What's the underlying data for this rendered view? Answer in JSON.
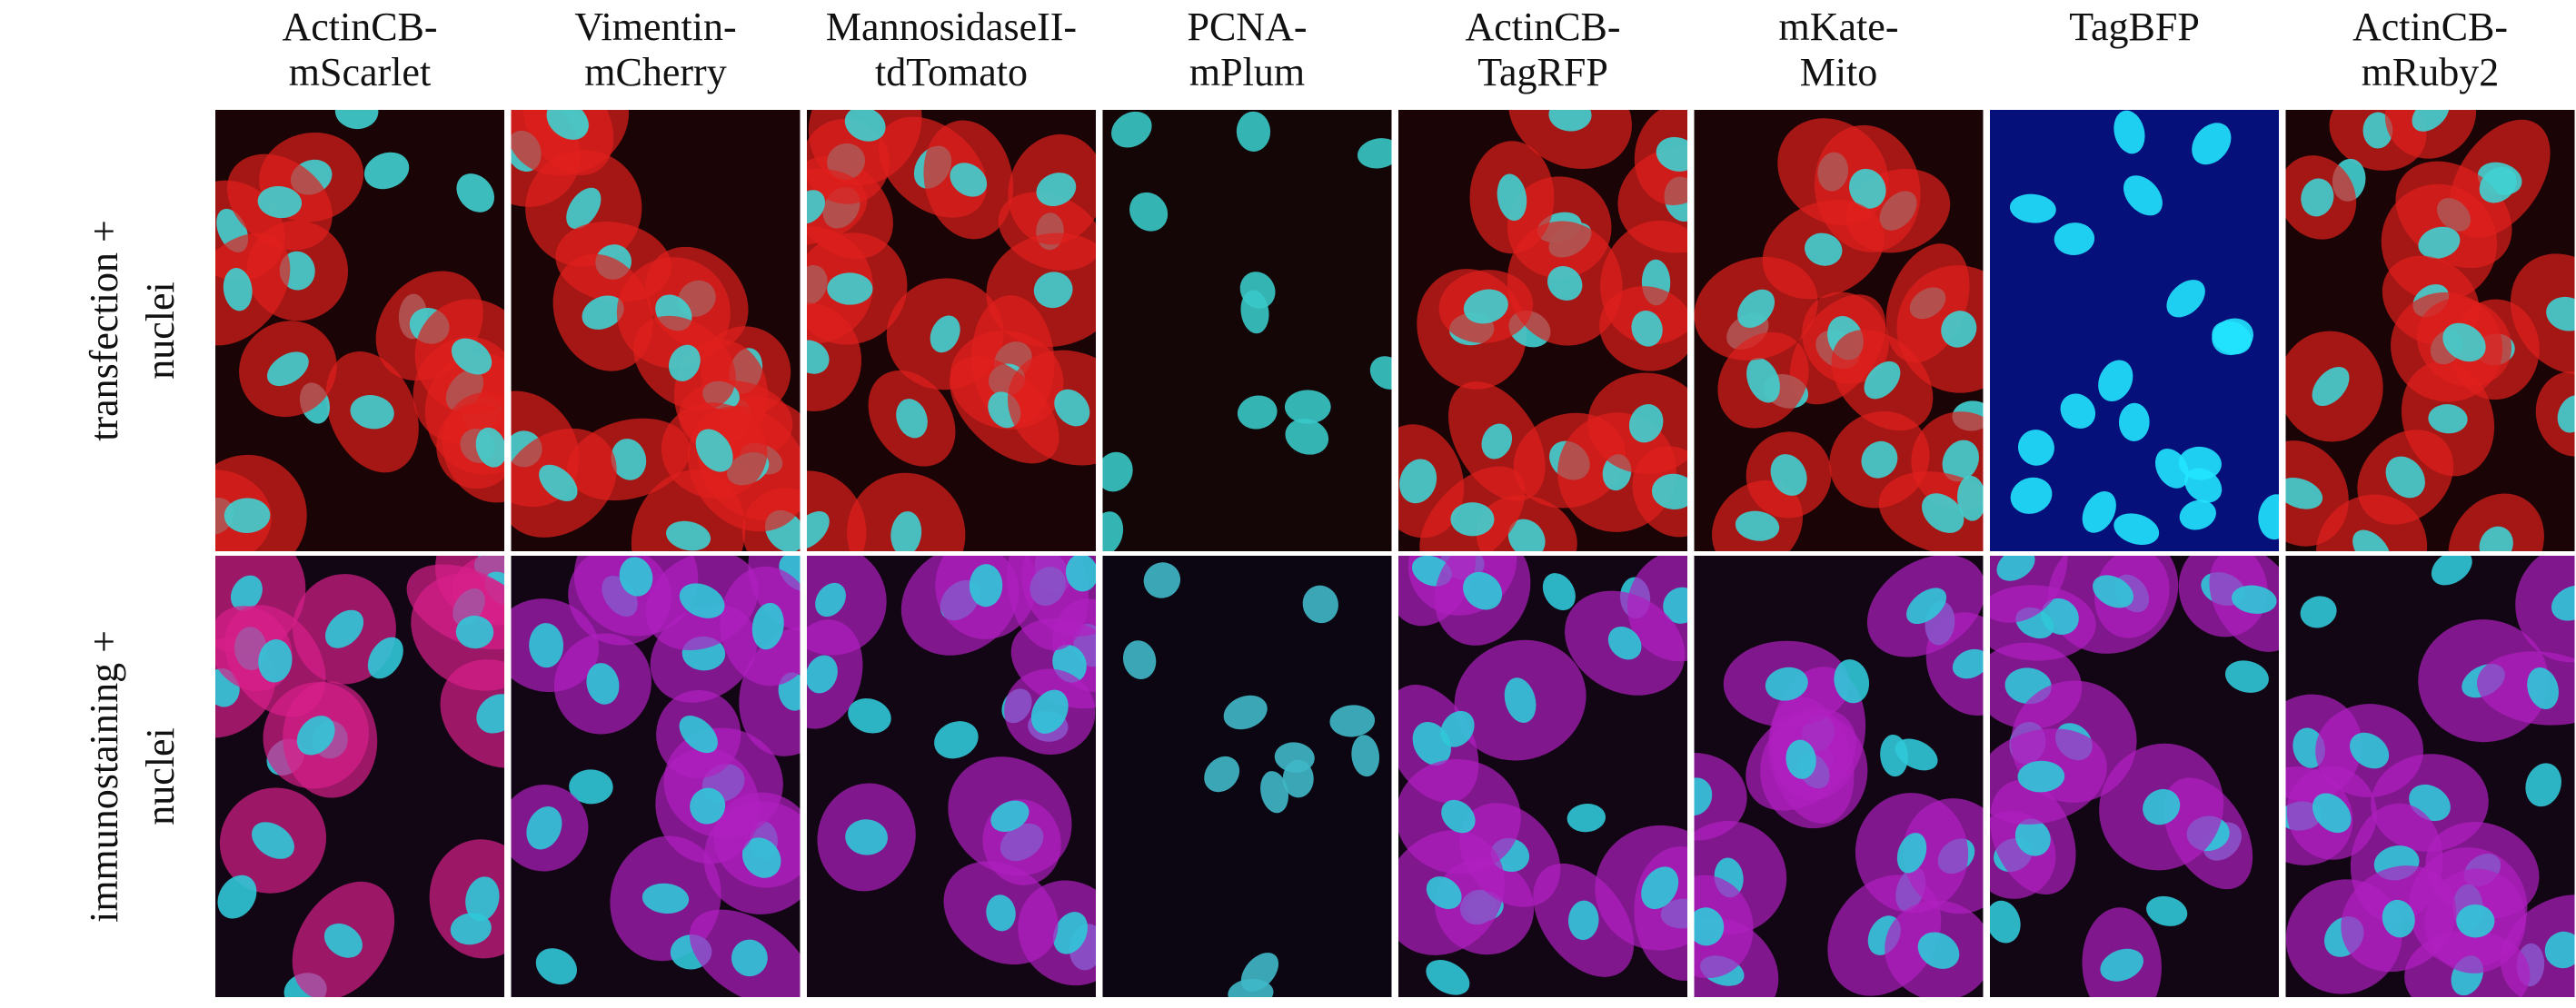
{
  "columns": [
    {
      "label": [
        "ActinCB-",
        "mScarlet"
      ]
    },
    {
      "label": [
        "Vimentin-",
        "mCherry"
      ]
    },
    {
      "label": [
        "MannosidaseII-",
        "tdTomato"
      ]
    },
    {
      "label": [
        "PCNA-",
        "mPlum"
      ]
    },
    {
      "label": [
        "ActinCB-",
        "TagRFP"
      ]
    },
    {
      "label": [
        "mKate-",
        "Mito"
      ]
    },
    {
      "label": [
        "TagBFP"
      ]
    },
    {
      "label": [
        "ActinCB-",
        "mRuby2"
      ]
    }
  ],
  "rows": [
    {
      "label": [
        "transfection +",
        "nuclei"
      ]
    },
    {
      "label": [
        "immunostaining +",
        "nuclei"
      ]
    }
  ]
}
